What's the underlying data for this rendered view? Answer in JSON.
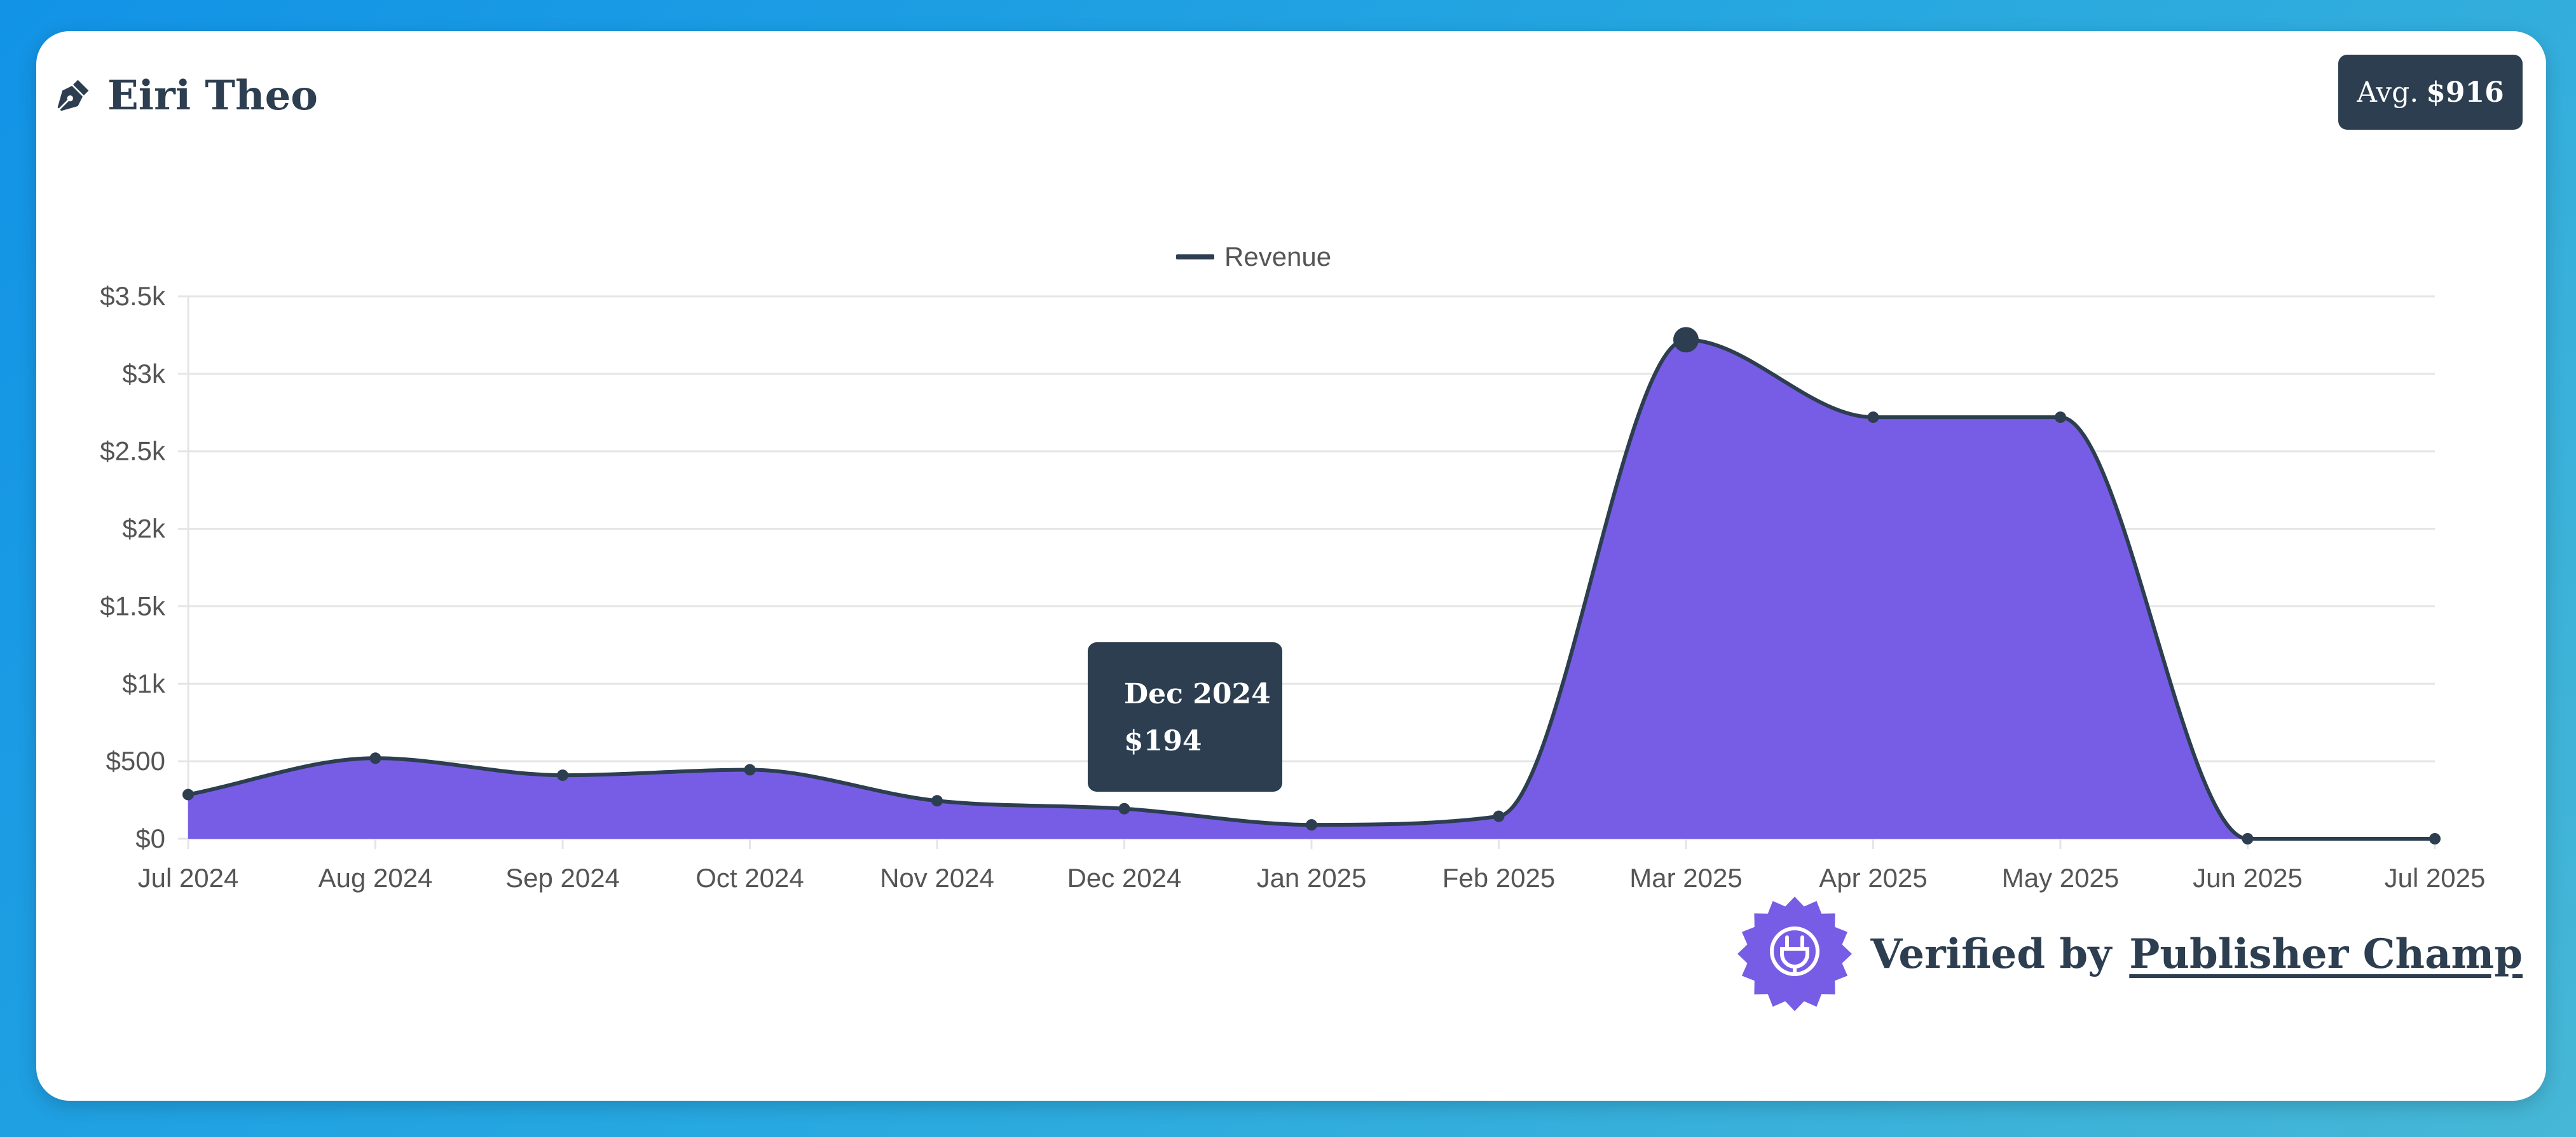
{
  "header": {
    "title": "Eiri Theo",
    "icon": "pen-nib-icon",
    "avg_label": "Avg.",
    "avg_value": "$916"
  },
  "colors": {
    "area_fill": "#775de5",
    "line": "#2c3e50",
    "dark": "#2c3e50",
    "grid": "#e5e5e5"
  },
  "tooltip": {
    "title": "Dec 2024",
    "value": "$194"
  },
  "footer": {
    "verified_prefix": "Verified by",
    "verified_link": "Publisher Champ",
    "icon": "plug-seal-icon"
  },
  "chart_data": {
    "type": "area",
    "legend": [
      "Revenue"
    ],
    "legend_position": "top-center",
    "grid": true,
    "ylim": [
      0,
      3500
    ],
    "yticks": [
      0,
      500,
      1000,
      1500,
      2000,
      2500,
      3000,
      3500
    ],
    "ytick_labels": [
      "$0",
      "$500",
      "$1k",
      "$1.5k",
      "$2k",
      "$2.5k",
      "$3k",
      "$3.5k"
    ],
    "categories": [
      "Jul 2024",
      "Aug 2024",
      "Sep 2024",
      "Oct 2024",
      "Nov 2024",
      "Dec 2024",
      "Jan 2025",
      "Feb 2025",
      "Mar 2025",
      "Apr 2025",
      "May 2025",
      "Jun 2025",
      "Jul 2025"
    ],
    "series": [
      {
        "name": "Revenue",
        "values": [
          285,
          520,
          410,
          445,
          245,
          194,
          90,
          145,
          3220,
          2720,
          2720,
          0,
          0
        ]
      }
    ],
    "highlight_index": 8
  }
}
